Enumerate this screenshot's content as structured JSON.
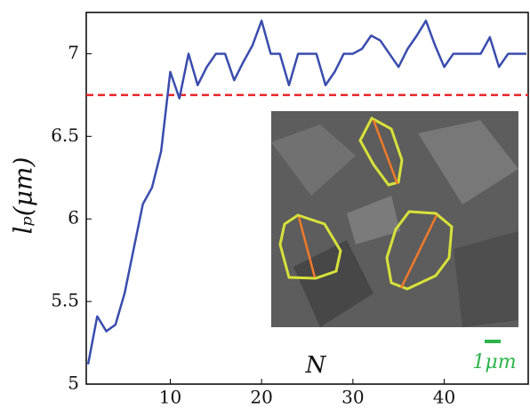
{
  "chart_data": {
    "type": "line",
    "x_label": "N",
    "y_label": "lₚ(μm)",
    "x": [
      1,
      2,
      3,
      4,
      5,
      6,
      7,
      8,
      9,
      10,
      11,
      12,
      13,
      14,
      15,
      16,
      17,
      18,
      19,
      20,
      21,
      22,
      23,
      24,
      25,
      26,
      27,
      28,
      29,
      30,
      31,
      32,
      33,
      34,
      35,
      36,
      37,
      38,
      39,
      40,
      41,
      42,
      43,
      44,
      45,
      46,
      47,
      48,
      49
    ],
    "series": [
      {
        "color": "#3a4cad",
        "values": [
          5.12,
          5.41,
          5.32,
          5.36,
          5.55,
          5.82,
          6.09,
          6.19,
          6.41,
          6.89,
          6.73,
          7.0,
          6.81,
          6.92,
          7.0,
          7.0,
          6.84,
          6.95,
          7.05,
          7.2,
          7.0,
          7.0,
          6.81,
          7.0,
          7.0,
          7.0,
          6.81,
          6.89,
          7.0,
          7.0,
          7.03,
          7.11,
          7.08,
          7.0,
          6.92,
          7.03,
          7.11,
          7.2,
          7.05,
          6.92,
          7.0,
          7.0,
          7.0,
          7.0,
          7.1,
          6.92,
          7.0,
          7.0,
          7.0
        ]
      }
    ],
    "reference_line": {
      "value": 6.75,
      "color": "#e8262a"
    },
    "xlim": [
      0.8,
      49.2
    ],
    "xticks": [
      10,
      20,
      30,
      40
    ],
    "ylim": [
      5,
      7.25
    ],
    "yticks": [
      5,
      5.5,
      6,
      6.5,
      7
    ],
    "scale_bar_label": "1μm"
  }
}
